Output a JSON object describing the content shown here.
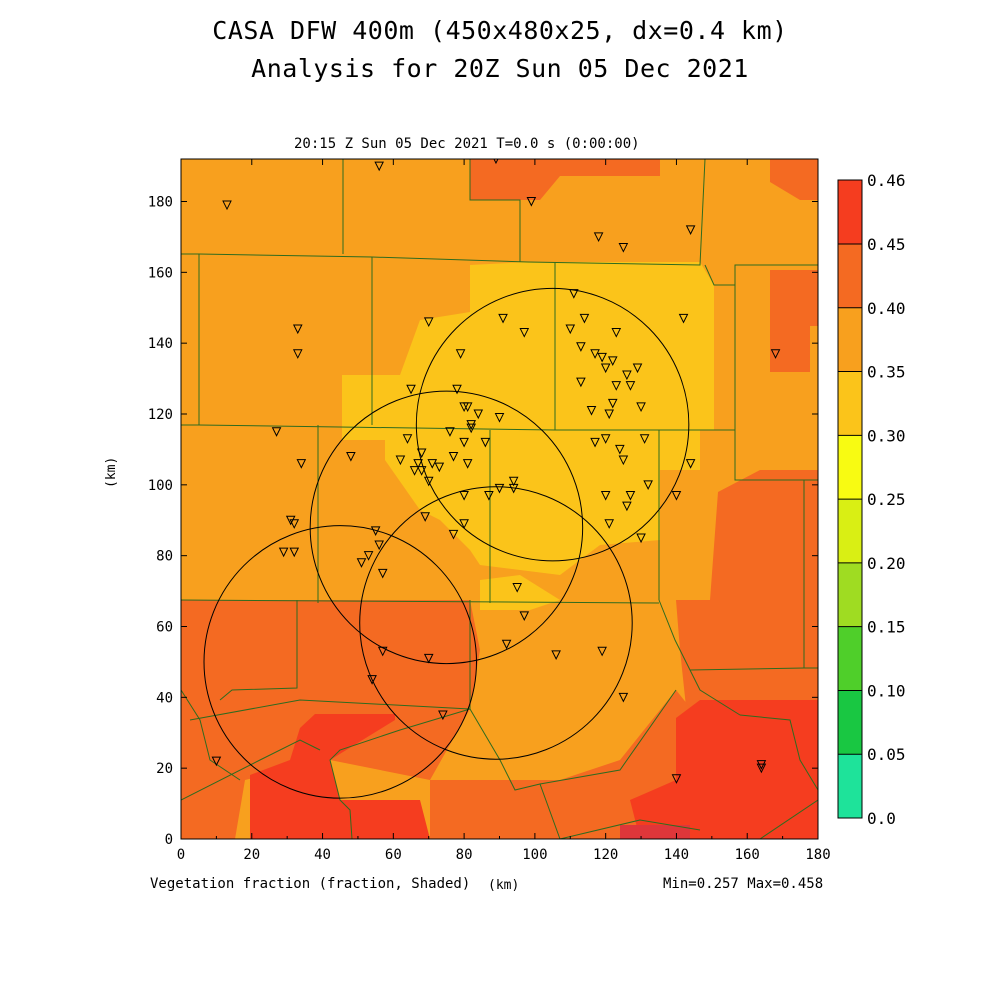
{
  "header": {
    "title_line1": "CASA DFW 400m (450x480x25, dx=0.4 km)",
    "title_line2": "Analysis for 20Z Sun 05 Dec 2021",
    "subtitle": "20:15 Z Sun 05 Dec 2021   T=0.0 s (0:00:00)"
  },
  "footer": {
    "field_label": "Vegetation fraction (fraction, Shaded)",
    "x_unit": "(km)",
    "minmax": "Min=0.257 Max=0.458"
  },
  "axes": {
    "x_label": "(km)",
    "y_label": "(km)",
    "x_range": [
      0,
      180
    ],
    "y_range": [
      0,
      192
    ],
    "x_ticks": [
      0,
      20,
      40,
      60,
      80,
      100,
      120,
      140,
      160,
      180
    ],
    "y_ticks": [
      0,
      20,
      40,
      60,
      80,
      100,
      120,
      140,
      160,
      180
    ]
  },
  "colorbar": {
    "levels": [
      "0.0",
      "0.05",
      "0.10",
      "0.15",
      "0.20",
      "0.25",
      "0.30",
      "0.35",
      "0.40",
      "0.45",
      "0.46"
    ],
    "colors": [
      "#1ee39a",
      "#19c742",
      "#4fcf2a",
      "#9fdc22",
      "#d9ef14",
      "#f8fb12",
      "#fbc41a",
      "#f8a01e",
      "#f46a22",
      "#f53d1f",
      "#df363a"
    ]
  },
  "chart_data": {
    "type": "heatmap",
    "variable": "Vegetation fraction",
    "min": 0.257,
    "max": 0.458,
    "radar_circles": [
      {
        "center": [
          45,
          50
        ]
      },
      {
        "center": [
          75,
          88
        ]
      },
      {
        "center": [
          89,
          61
        ]
      },
      {
        "center": [
          105,
          117
        ]
      }
    ],
    "station_markers": [
      [
        13,
        179
      ],
      [
        56,
        190
      ],
      [
        89,
        192
      ],
      [
        99,
        180
      ],
      [
        118,
        170
      ],
      [
        125,
        167
      ],
      [
        144,
        172
      ],
      [
        33,
        144
      ],
      [
        33,
        137
      ],
      [
        70,
        146
      ],
      [
        79,
        137
      ],
      [
        91,
        147
      ],
      [
        97,
        143
      ],
      [
        110,
        144
      ],
      [
        111,
        154
      ],
      [
        114,
        147
      ],
      [
        113,
        139
      ],
      [
        117,
        137
      ],
      [
        119,
        136
      ],
      [
        120,
        133
      ],
      [
        122,
        135
      ],
      [
        123,
        143
      ],
      [
        126,
        131
      ],
      [
        129,
        133
      ],
      [
        127,
        128
      ],
      [
        123,
        128
      ],
      [
        113,
        129
      ],
      [
        116,
        121
      ],
      [
        122,
        123
      ],
      [
        121,
        120
      ],
      [
        130,
        122
      ],
      [
        142,
        147
      ],
      [
        168,
        137
      ],
      [
        78,
        127
      ],
      [
        65,
        127
      ],
      [
        80,
        122
      ],
      [
        81,
        122
      ],
      [
        84,
        120
      ],
      [
        90,
        119
      ],
      [
        82,
        117
      ],
      [
        76,
        115
      ],
      [
        64,
        113
      ],
      [
        68,
        109
      ],
      [
        62,
        107
      ],
      [
        67,
        106
      ],
      [
        68,
        104
      ],
      [
        71,
        106
      ],
      [
        73,
        105
      ],
      [
        77,
        108
      ],
      [
        80,
        112
      ],
      [
        82,
        116
      ],
      [
        86,
        112
      ],
      [
        81,
        106
      ],
      [
        66,
        104
      ],
      [
        70,
        101
      ],
      [
        34,
        106
      ],
      [
        48,
        108
      ],
      [
        27,
        115
      ],
      [
        117,
        112
      ],
      [
        120,
        113
      ],
      [
        124,
        110
      ],
      [
        125,
        107
      ],
      [
        131,
        113
      ],
      [
        144,
        106
      ],
      [
        140,
        97
      ],
      [
        94,
        101
      ],
      [
        94,
        99
      ],
      [
        90,
        99
      ],
      [
        87,
        97
      ],
      [
        80,
        97
      ],
      [
        69,
        91
      ],
      [
        80,
        89
      ],
      [
        77,
        86
      ],
      [
        31,
        90
      ],
      [
        32,
        89
      ],
      [
        29,
        81
      ],
      [
        32,
        81
      ],
      [
        55,
        87
      ],
      [
        56,
        83
      ],
      [
        53,
        80
      ],
      [
        51,
        78
      ],
      [
        57,
        75
      ],
      [
        95,
        71
      ],
      [
        97,
        63
      ],
      [
        92,
        55
      ],
      [
        57,
        53
      ],
      [
        70,
        51
      ],
      [
        106,
        52
      ],
      [
        119,
        53
      ],
      [
        120,
        97
      ],
      [
        121,
        89
      ],
      [
        127,
        97
      ],
      [
        126,
        94
      ],
      [
        130,
        85
      ],
      [
        132,
        100
      ],
      [
        54,
        45
      ],
      [
        74,
        35
      ],
      [
        125,
        40
      ],
      [
        140,
        17
      ],
      [
        164,
        20
      ],
      [
        164,
        21
      ],
      [
        10,
        22
      ]
    ]
  }
}
